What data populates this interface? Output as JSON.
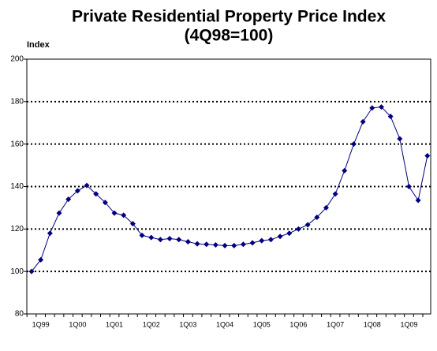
{
  "chart_data": {
    "type": "line",
    "title": "Private Residential Property Price Index",
    "subtitle": "(4Q98=100)",
    "y_label": "Index",
    "categories": [
      null,
      "1Q99",
      null,
      null,
      null,
      "1Q00",
      null,
      null,
      null,
      "1Q01",
      null,
      null,
      null,
      "1Q02",
      null,
      null,
      null,
      "1Q03",
      null,
      null,
      null,
      "1Q04",
      null,
      null,
      null,
      "1Q05",
      null,
      null,
      null,
      "1Q06",
      null,
      null,
      null,
      "1Q07",
      null,
      null,
      null,
      "1Q08",
      null,
      null,
      null,
      "1Q09",
      null,
      null
    ],
    "series": [
      {
        "name": "Index",
        "color": "#000080",
        "values": [
          100,
          105.5,
          118,
          127.5,
          134,
          138,
          140.5,
          136.5,
          132.5,
          127.5,
          126.5,
          122.5,
          117,
          116,
          115,
          115.5,
          115,
          114,
          113,
          112.8,
          112.5,
          112.2,
          112.2,
          112.8,
          113.5,
          114.5,
          115,
          116.5,
          118,
          120,
          122,
          125.5,
          130,
          136.5,
          147.5,
          160,
          170.5,
          177,
          177.5,
          173,
          162.5,
          140,
          133.5,
          154.5
        ]
      }
    ],
    "ylim": [
      80,
      200
    ],
    "yticks": [
      80,
      100,
      120,
      140,
      160,
      180,
      200
    ],
    "grid": true
  }
}
